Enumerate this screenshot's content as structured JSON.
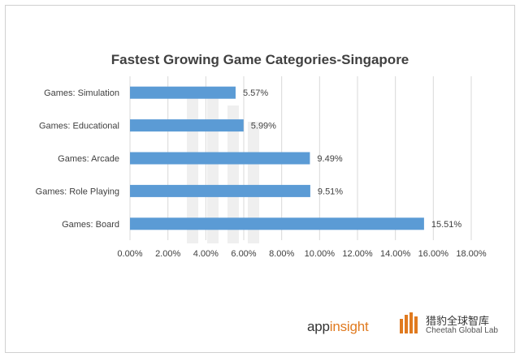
{
  "chart_data": {
    "type": "bar",
    "orientation": "horizontal",
    "title": "Fastest Growing Game Categories-Singapore",
    "categories": [
      "Games: Simulation",
      "Games: Educational",
      "Games: Arcade",
      "Games: Role Playing",
      "Games: Board"
    ],
    "values": [
      5.57,
      5.99,
      9.49,
      9.51,
      15.51
    ],
    "value_labels": [
      "5.57%",
      "5.99%",
      "9.49%",
      "9.51%",
      "15.51%"
    ],
    "xlim": [
      0,
      18
    ],
    "xticks": [
      0,
      2,
      4,
      6,
      8,
      10,
      12,
      14,
      16,
      18
    ],
    "xtick_labels": [
      "0.00%",
      "2.00%",
      "4.00%",
      "6.00%",
      "8.00%",
      "10.00%",
      "12.00%",
      "14.00%",
      "16.00%",
      "18.00%"
    ],
    "xlabel": "",
    "ylabel": "",
    "grid": true,
    "bar_color": "#5b9bd5",
    "grid_color": "#d9d9d9"
  },
  "footer": {
    "appinsight_app": "app",
    "appinsight_rest": "insight",
    "cheetah_cn": "猎豹全球智库",
    "cheetah_en": "Cheetah Global Lab",
    "accent_color": "#e07a1f"
  }
}
